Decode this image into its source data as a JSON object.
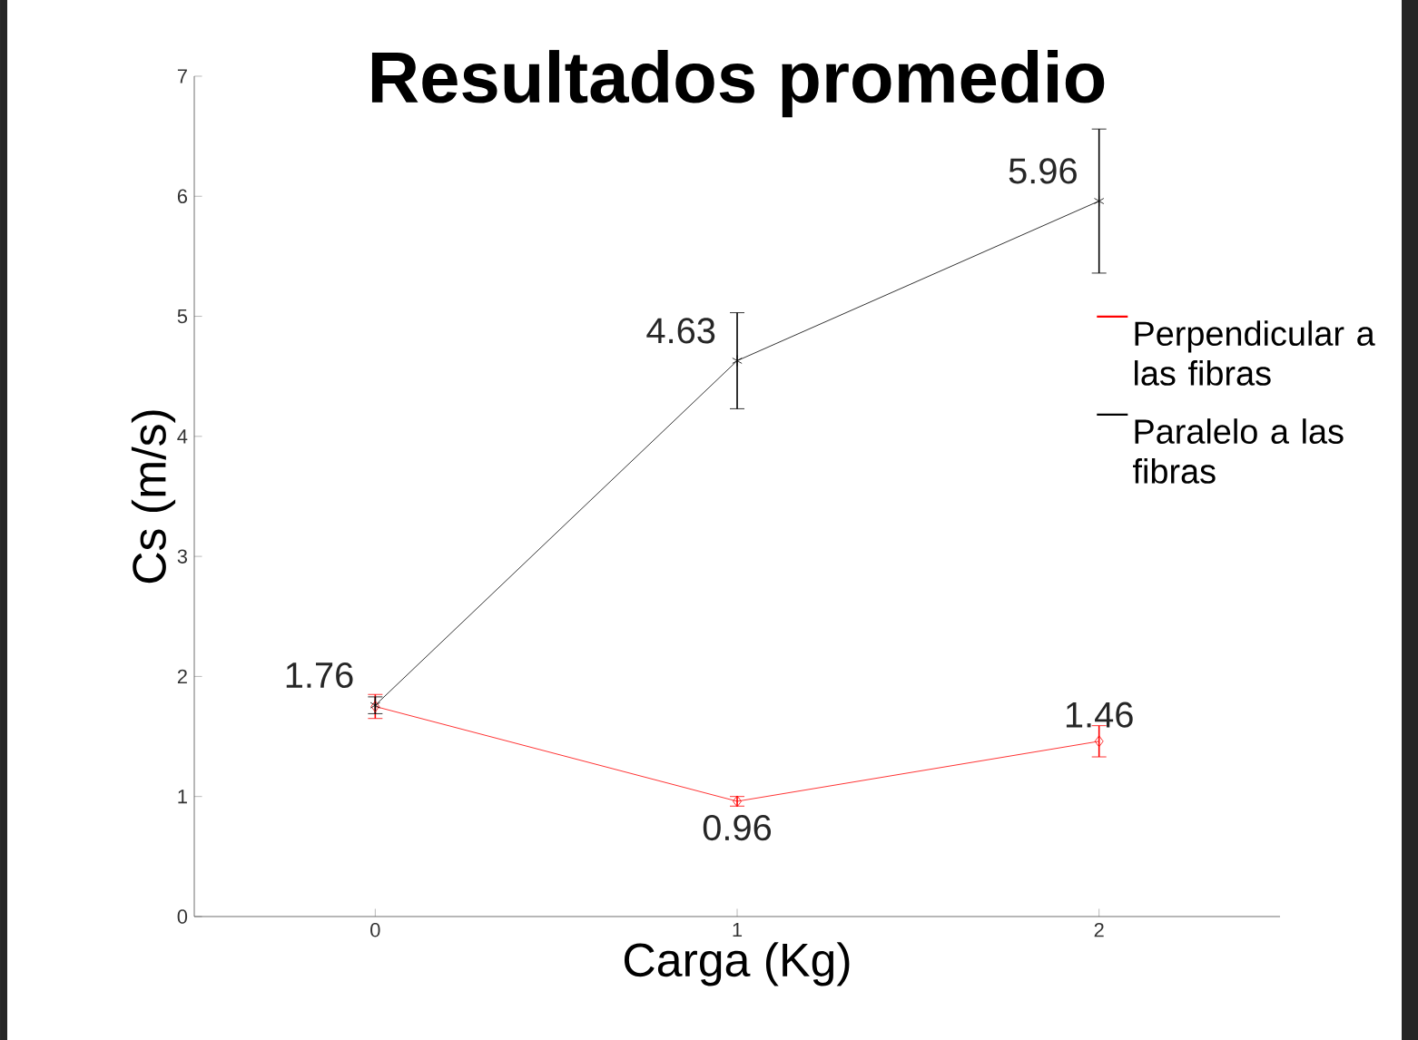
{
  "chart_data": {
    "type": "line",
    "title": "Resultados promedio",
    "xlabel": "Carga (Kg)",
    "ylabel": "Cs (m/s)",
    "x": [
      0,
      1,
      2
    ],
    "xlim": [
      -0.5,
      2.5
    ],
    "xticks": [
      0,
      1,
      2
    ],
    "ylim": [
      0,
      7
    ],
    "yticks": [
      0,
      1,
      2,
      3,
      4,
      5,
      6,
      7
    ],
    "grid": false,
    "legend": "right",
    "line_style": "solid",
    "series": [
      {
        "name": "Perpendicular a las fibras",
        "color": "#ff0000",
        "marker": "diamond",
        "values": [
          1.75,
          0.96,
          1.46
        ],
        "errors": [
          0.1,
          0.04,
          0.13
        ],
        "value_labels": [
          null,
          "0.96",
          "1.46"
        ]
      },
      {
        "name": "Paralelo a las fibras",
        "color": "#000000",
        "marker": "cross",
        "values": [
          1.76,
          4.63,
          5.96
        ],
        "errors": [
          0.07,
          0.4,
          0.6
        ],
        "value_labels": [
          "1.76",
          "4.63",
          "5.96"
        ]
      }
    ]
  }
}
